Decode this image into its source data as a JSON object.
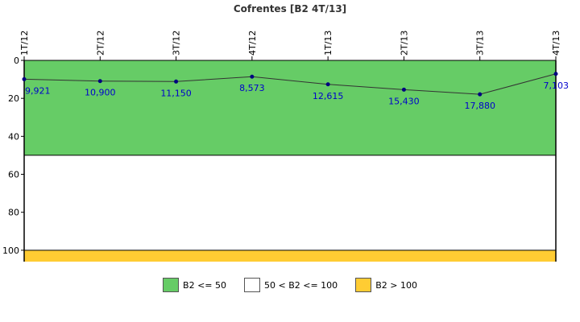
{
  "chart_data": {
    "type": "line",
    "title": "Cofrentes [B2 4T/13]",
    "categories": [
      "1T/12",
      "2T/12",
      "3T/12",
      "4T/12",
      "1T/13",
      "2T/13",
      "3T/13",
      "4T/13"
    ],
    "values": [
      9.921,
      10.9,
      11.15,
      8.573,
      12.615,
      15.43,
      17.88,
      7.103
    ],
    "value_labels": [
      "9,921",
      "10,900",
      "11,150",
      "8,573",
      "12,615",
      "15,430",
      "17,880",
      "7,103"
    ],
    "ylim": [
      0,
      106
    ],
    "y_axis_inverted": true,
    "yticks": [
      0,
      20,
      40,
      60,
      80,
      100
    ],
    "bands": [
      {
        "label": "B2 <= 50",
        "from": 0,
        "to": 50,
        "color": "#66cc66"
      },
      {
        "label": "50 < B2 <= 100",
        "from": 50,
        "to": 100,
        "color": "#ffffff"
      },
      {
        "label": "B2 > 100",
        "from": 100,
        "to": 106,
        "color": "#ffcc33"
      }
    ],
    "line_color": "#333333",
    "point_color": "#000080",
    "label_color": "#0000cc",
    "legend_position": "bottom"
  },
  "legend": [
    {
      "label": "B2 <= 50",
      "color": "#66cc66"
    },
    {
      "label": "50 < B2 <= 100",
      "color": "#ffffff"
    },
    {
      "label": "B2 > 100",
      "color": "#ffcc33"
    }
  ]
}
